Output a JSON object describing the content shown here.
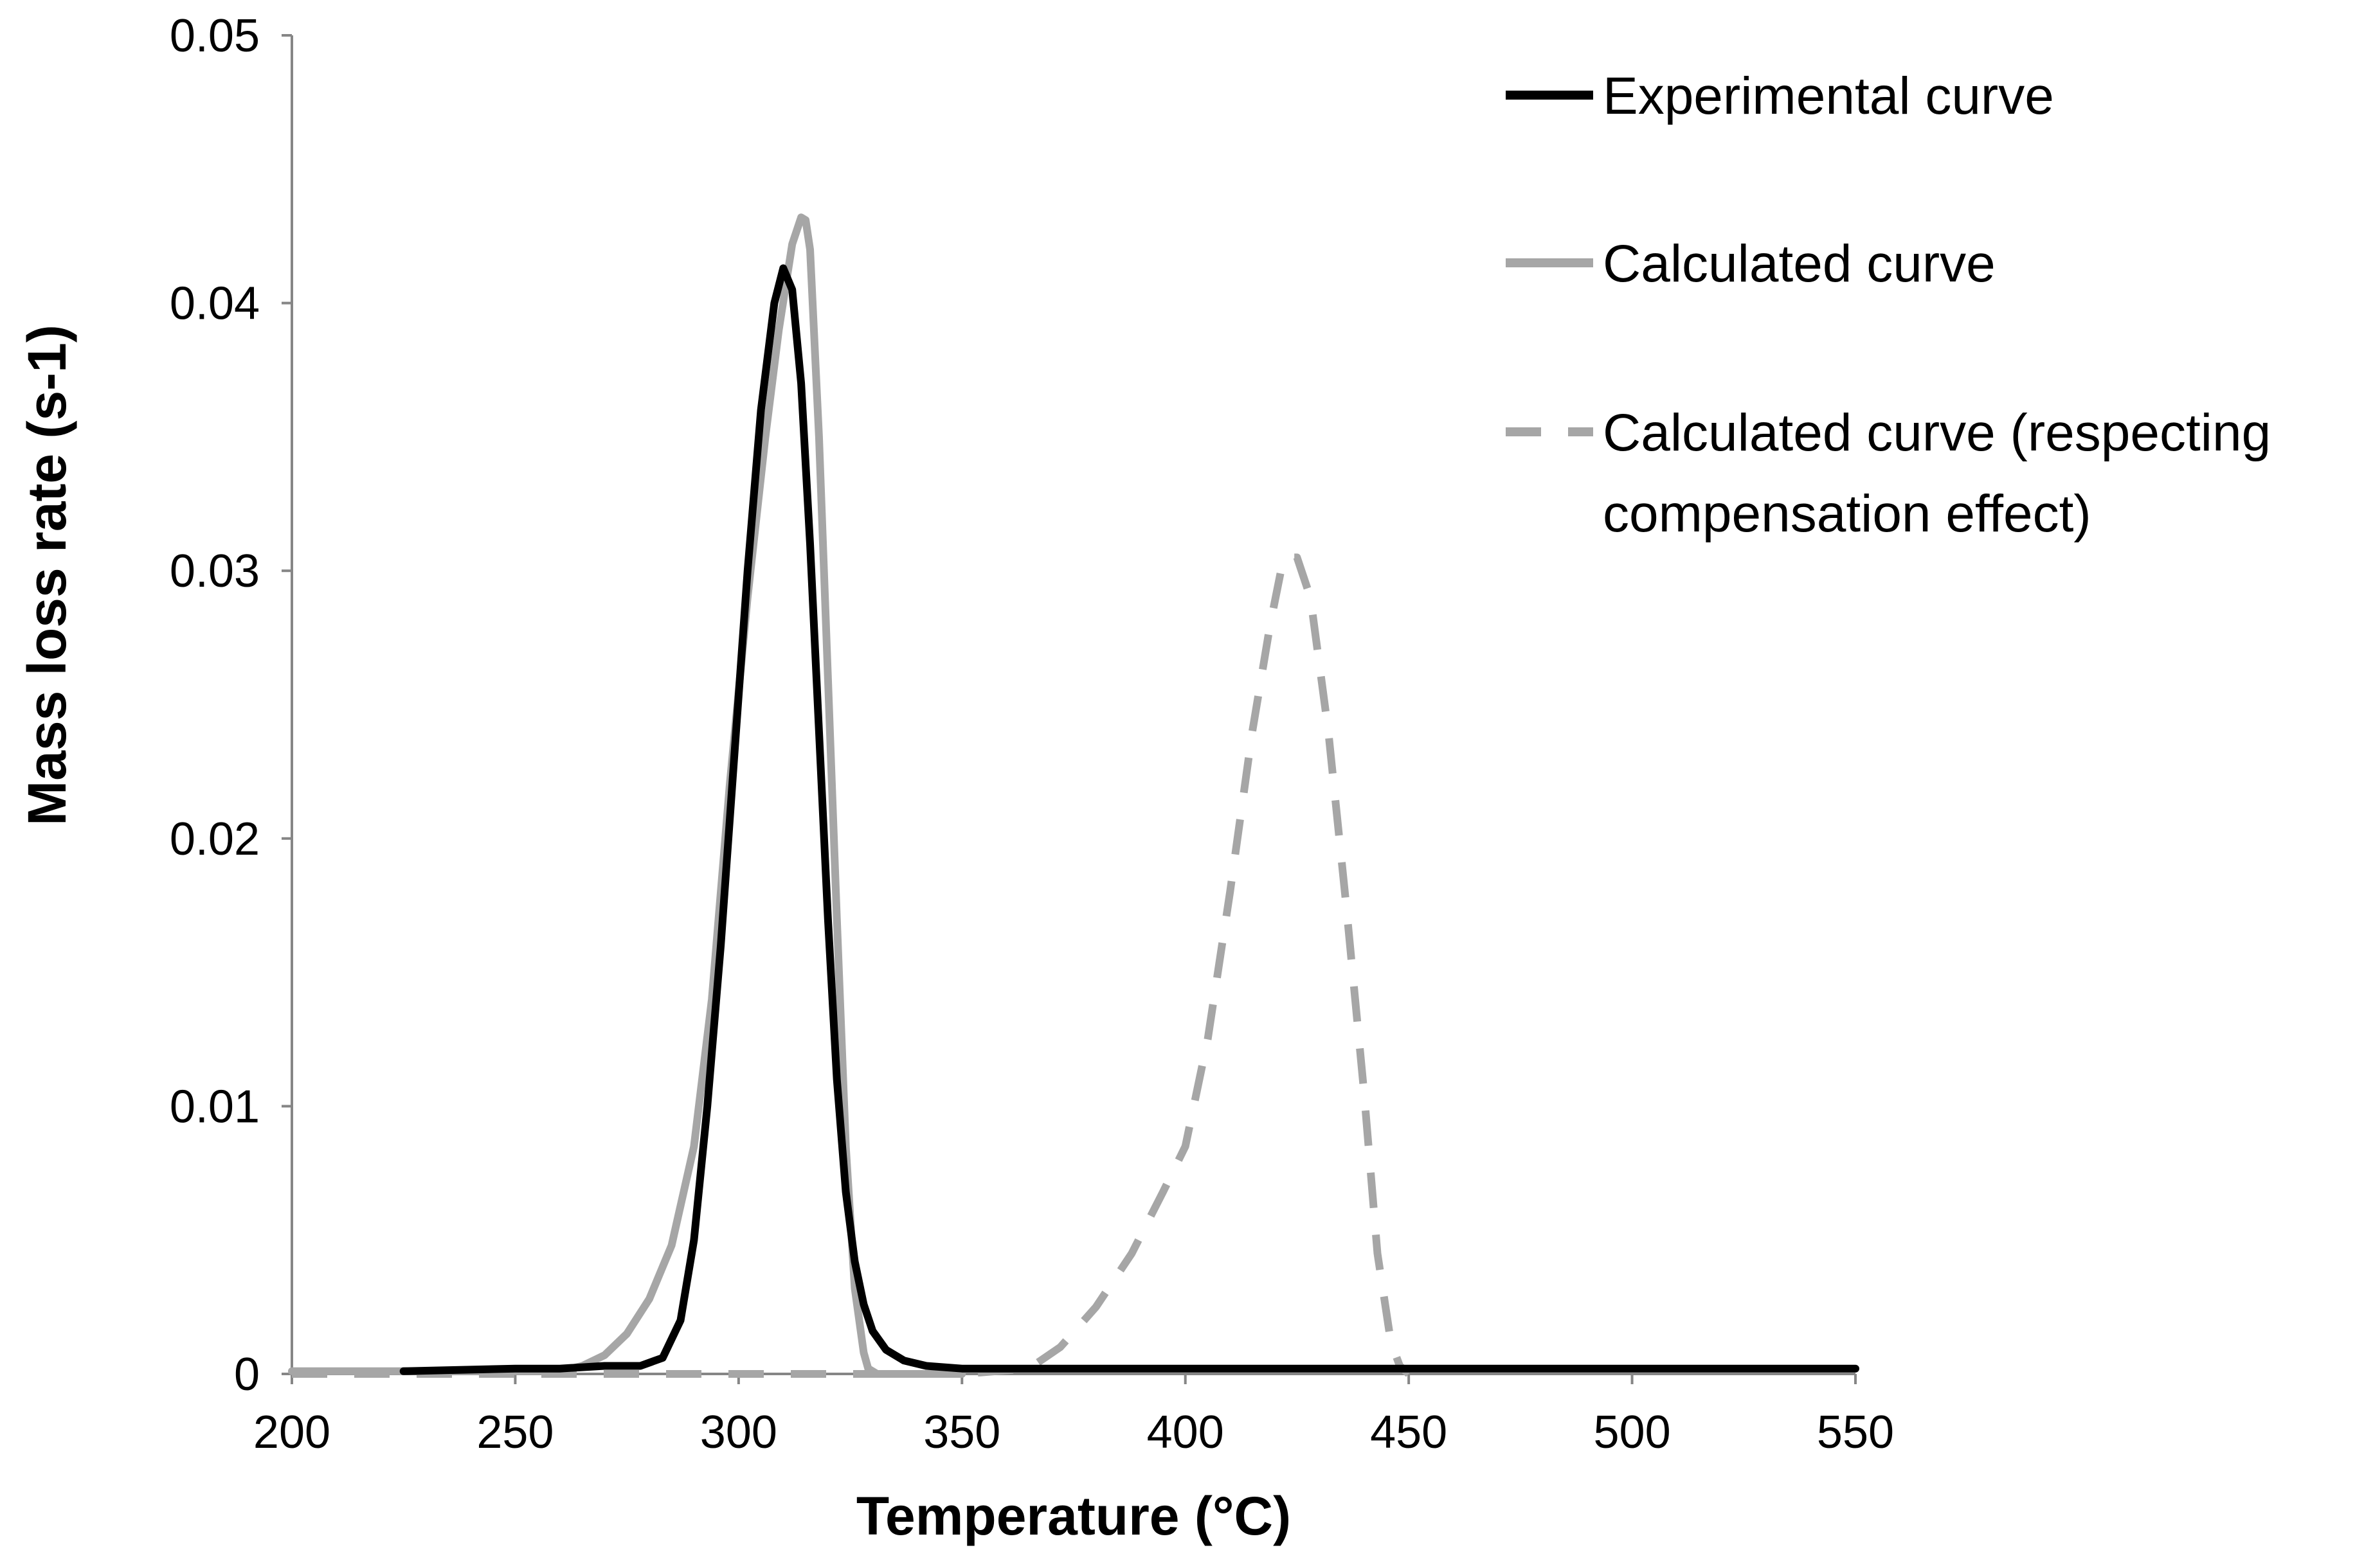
{
  "chart_data": {
    "type": "line",
    "title": "",
    "xlabel": "Temperature (°C)",
    "ylabel": "Mass loss rate (s-1)",
    "xlim": [
      200,
      550
    ],
    "ylim": [
      0,
      0.05
    ],
    "xticks": [
      200,
      250,
      300,
      350,
      400,
      450,
      500,
      550
    ],
    "xtick_labels": [
      "200",
      "250",
      "300",
      "350",
      "400",
      "450",
      "500",
      "550"
    ],
    "yticks": [
      0,
      0.01,
      0.02,
      0.03,
      0.04,
      0.05
    ],
    "ytick_labels": [
      "0",
      "0.01",
      "0.02",
      "0.03",
      "0.04",
      "0.05"
    ],
    "grid": false,
    "legend_position": "top-right",
    "series": [
      {
        "name": "Experimental curve",
        "color": "#000000",
        "style": "solid",
        "x": [
          225,
          250,
          260,
          270,
          278,
          283,
          287,
          290,
          293,
          296,
          299,
          302,
          305,
          308,
          310,
          312,
          314,
          316,
          318,
          320,
          322,
          324,
          326,
          328,
          330,
          333,
          337,
          342,
          350,
          400,
          450,
          500,
          550
        ],
        "y": [
          0.0001,
          0.0002,
          0.0002,
          0.0003,
          0.0003,
          0.0006,
          0.002,
          0.005,
          0.01,
          0.016,
          0.023,
          0.03,
          0.036,
          0.04,
          0.0413,
          0.0405,
          0.037,
          0.031,
          0.024,
          0.017,
          0.011,
          0.0068,
          0.0042,
          0.0026,
          0.0016,
          0.0009,
          0.0005,
          0.0003,
          0.0002,
          0.0002,
          0.0002,
          0.0002,
          0.0002
        ]
      },
      {
        "name": "Calculated curve",
        "color": "#a6a6a6",
        "style": "solid",
        "x": [
          200,
          250,
          260,
          265,
          270,
          275,
          280,
          285,
          290,
          294,
          298,
          302,
          306,
          309,
          312,
          314,
          315,
          316,
          318,
          320,
          322,
          324,
          326,
          328,
          329,
          331,
          335,
          350
        ],
        "y": [
          0.0001,
          0.0001,
          0.0001,
          0.0003,
          0.0007,
          0.0015,
          0.0028,
          0.0048,
          0.0085,
          0.014,
          0.022,
          0.029,
          0.035,
          0.039,
          0.0422,
          0.0432,
          0.0431,
          0.042,
          0.035,
          0.026,
          0.017,
          0.0085,
          0.0032,
          0.0008,
          0.0002,
          0.0,
          0.0,
          0.0
        ]
      },
      {
        "name": "Calculated curve (respecting compensation effect)",
        "color": "#a6a6a6",
        "style": "dashed",
        "x": [
          200,
          350,
          365,
          372,
          380,
          388,
          395,
          400,
          405,
          410,
          415,
          419,
          422,
          425,
          428,
          432,
          436,
          440,
          443,
          446,
          448,
          450
        ],
        "y": [
          0.0,
          0.0,
          0.0002,
          0.001,
          0.0025,
          0.0045,
          0.0068,
          0.0085,
          0.0125,
          0.018,
          0.024,
          0.028,
          0.0305,
          0.0305,
          0.029,
          0.024,
          0.0175,
          0.0105,
          0.0045,
          0.0012,
          0.0003,
          0.0
        ]
      }
    ]
  }
}
